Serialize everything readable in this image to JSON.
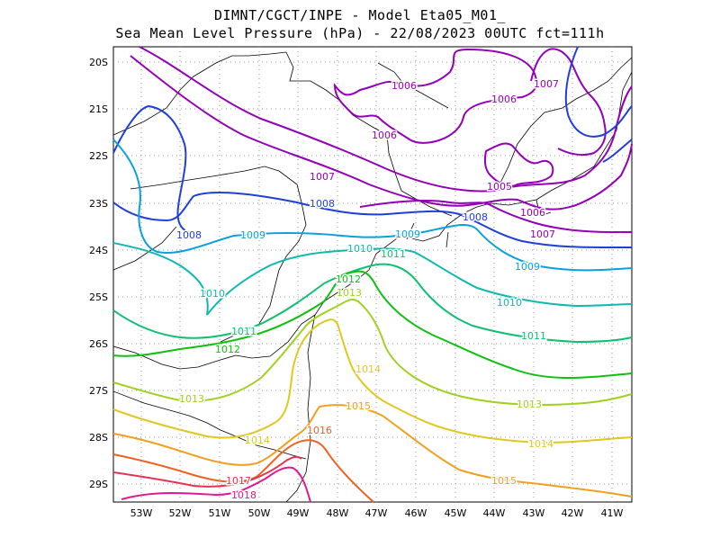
{
  "header": {
    "line1": "DIMNT/CGCT/INPE -  Model Eta05_M01_",
    "line2": "Sea Mean Level Pressure (hPa) - 22/08/2023 00UTC fct=111h"
  },
  "axes": {
    "lat_labels": [
      "20S",
      "21S",
      "22S",
      "23S",
      "24S",
      "25S",
      "26S",
      "27S",
      "28S",
      "29S"
    ],
    "lon_labels": [
      "53W",
      "52W",
      "51W",
      "50W",
      "49W",
      "48W",
      "47W",
      "46W",
      "45W",
      "44W",
      "43W",
      "42W",
      "41W"
    ]
  },
  "isobar_labels": [
    {
      "text": "1006",
      "color": "#9400b8"
    },
    {
      "text": "1006",
      "color": "#9400b8"
    },
    {
      "text": "1006",
      "color": "#9400b8"
    },
    {
      "text": "1007",
      "color": "#9400b8"
    },
    {
      "text": "1007",
      "color": "#9400b8"
    },
    {
      "text": "1005",
      "color": "#9400b8"
    },
    {
      "text": "1006",
      "color": "#9400b8"
    },
    {
      "text": "1007",
      "color": "#9400b8"
    },
    {
      "text": "1008",
      "color": "#1f3fd9"
    },
    {
      "text": "1008",
      "color": "#1f3fd9"
    },
    {
      "text": "1008",
      "color": "#1f3fd9"
    },
    {
      "text": "1009",
      "color": "#0aa0e0"
    },
    {
      "text": "1009",
      "color": "#0aa0e0"
    },
    {
      "text": "1009",
      "color": "#0aa0e0"
    },
    {
      "text": "1010",
      "color": "#10b8b0"
    },
    {
      "text": "1010",
      "color": "#10b8b0"
    },
    {
      "text": "1010",
      "color": "#10b8b0"
    },
    {
      "text": "1011",
      "color": "#10c070"
    },
    {
      "text": "1011",
      "color": "#10c070"
    },
    {
      "text": "1011",
      "color": "#10c070"
    },
    {
      "text": "1012",
      "color": "#10c010"
    },
    {
      "text": "1012",
      "color": "#10c010"
    },
    {
      "text": "1013",
      "color": "#a0d020"
    },
    {
      "text": "1013",
      "color": "#a0d020"
    },
    {
      "text": "1013",
      "color": "#a0d020"
    },
    {
      "text": "1014",
      "color": "#e0c820"
    },
    {
      "text": "1014",
      "color": "#e0c820"
    },
    {
      "text": "1014",
      "color": "#e0c820"
    },
    {
      "text": "1015",
      "color": "#f0a020"
    },
    {
      "text": "1015",
      "color": "#f0a020"
    },
    {
      "text": "1016",
      "color": "#f06020"
    },
    {
      "text": "1017",
      "color": "#e83050"
    },
    {
      "text": "1018",
      "color": "#e01890"
    }
  ]
}
